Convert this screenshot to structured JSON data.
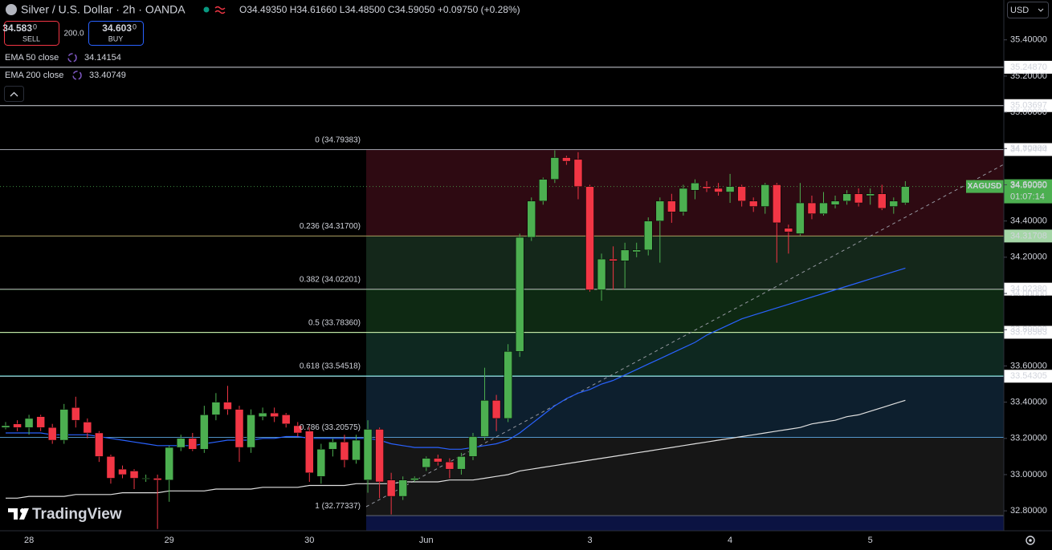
{
  "chart_data": {
    "type": "candlestick",
    "title": "Silver / U.S. Dollar · 2h · OANDA",
    "ohlc_text": "O34.49350 H34.61660 L34.48500 C34.59050 +0.09750 (+0.28%)",
    "sell": {
      "price": "34.583",
      "suffix": "0",
      "label": "SELL"
    },
    "spread": "200.0",
    "buy": {
      "price": "34.603",
      "suffix": "0",
      "label": "BUY"
    },
    "currency": "USD",
    "watermark": "TradingView",
    "up_color": "#4caf50",
    "down_color": "#f23645",
    "categories": [
      null,
      null,
      "28",
      null,
      null,
      null,
      null,
      null,
      null,
      null,
      null,
      null,
      null,
      null,
      "29",
      null,
      null,
      null,
      null,
      null,
      null,
      null,
      null,
      null,
      null,
      null,
      "30",
      null,
      null,
      null,
      null,
      null,
      null,
      null,
      null,
      null,
      "Jun",
      null,
      null,
      null,
      null,
      null,
      null,
      null,
      null,
      null,
      null,
      null,
      null,
      null,
      "3",
      null,
      null,
      null,
      null,
      null,
      null,
      null,
      null,
      null,
      null,
      null,
      "4",
      null,
      null,
      null,
      null,
      null,
      null,
      null,
      null,
      null,
      null,
      null,
      "5",
      null,
      null,
      null
    ],
    "open": [
      33.26,
      33.28,
      33.26,
      33.32,
      33.26,
      33.19,
      33.37,
      33.29,
      33.23,
      33.1,
      33.03,
      33.02,
      32.98,
      32.98,
      32.97,
      33.15,
      33.2,
      33.14,
      33.33,
      33.4,
      33.36,
      33.15,
      33.32,
      33.34,
      33.33,
      33.27,
      33.24,
      32.99,
      33.14,
      33.18,
      33.08,
      32.97,
      33.25,
      32.97,
      32.88,
      32.97,
      33.04,
      33.09,
      33.07,
      33.03,
      33.1,
      33.21,
      33.41,
      33.31,
      33.68,
      34.31,
      34.51,
      34.63,
      34.75,
      34.74,
      34.59,
      34.02,
      34.19,
      34.18,
      34.23,
      34.24,
      34.4,
      34.51,
      34.45,
      34.57,
      34.59,
      34.58,
      34.56,
      34.59,
      34.51,
      34.48,
      34.6,
      34.36,
      34.33,
      34.5,
      34.44,
      34.49,
      34.51,
      34.55,
      34.54,
      34.55,
      34.48,
      34.5
    ],
    "high": [
      33.29,
      33.3,
      33.33,
      33.33,
      33.28,
      33.39,
      33.43,
      33.31,
      33.24,
      33.11,
      33.05,
      33.03,
      33.0,
      33.0,
      33.16,
      33.22,
      33.23,
      33.38,
      33.45,
      33.49,
      33.38,
      33.36,
      33.37,
      33.37,
      33.34,
      33.29,
      33.26,
      33.17,
      33.2,
      33.22,
      33.22,
      33.3,
      33.26,
      33.01,
      32.99,
      32.99,
      33.1,
      33.11,
      33.09,
      33.12,
      33.23,
      33.59,
      33.44,
      33.72,
      34.33,
      34.53,
      34.64,
      34.79,
      34.76,
      34.78,
      34.6,
      34.22,
      34.26,
      34.28,
      34.28,
      34.42,
      34.53,
      34.55,
      34.6,
      34.63,
      34.62,
      34.61,
      34.66,
      34.6,
      34.53,
      34.61,
      34.61,
      34.38,
      34.61,
      34.54,
      34.56,
      34.54,
      34.57,
      34.58,
      34.58,
      34.6,
      34.53,
      34.62
    ],
    "low": [
      33.25,
      33.24,
      33.22,
      33.24,
      33.17,
      33.17,
      33.26,
      33.2,
      33.07,
      32.95,
      32.98,
      32.92,
      32.96,
      32.7,
      32.85,
      33.13,
      33.13,
      33.12,
      33.3,
      33.33,
      33.07,
      33.12,
      33.3,
      33.29,
      33.26,
      33.21,
      32.96,
      32.95,
      33.1,
      33.04,
      33.06,
      32.9,
      32.87,
      32.78,
      32.86,
      32.96,
      33.02,
      33.05,
      32.98,
      33.0,
      33.08,
      33.19,
      33.24,
      33.29,
      33.65,
      34.29,
      34.49,
      34.61,
      34.71,
      34.52,
      34.01,
      33.96,
      34.02,
      34.03,
      34.2,
      34.21,
      34.17,
      34.39,
      34.43,
      34.52,
      34.56,
      34.54,
      34.5,
      34.48,
      34.45,
      34.44,
      34.17,
      34.22,
      34.32,
      34.41,
      34.43,
      34.47,
      34.49,
      34.48,
      34.49,
      34.46,
      34.44,
      34.49
    ],
    "close": [
      33.27,
      33.26,
      33.31,
      33.26,
      33.19,
      33.36,
      33.3,
      33.23,
      33.1,
      32.98,
      33.0,
      32.98,
      32.98,
      32.97,
      33.15,
      33.2,
      33.14,
      33.33,
      33.4,
      33.36,
      33.15,
      33.33,
      33.34,
      33.32,
      33.28,
      33.23,
      33.01,
      33.14,
      33.18,
      33.08,
      33.19,
      33.25,
      32.96,
      32.88,
      32.97,
      32.98,
      33.09,
      33.07,
      33.03,
      33.1,
      33.21,
      33.41,
      33.31,
      33.68,
      34.31,
      34.51,
      34.63,
      34.75,
      34.73,
      34.59,
      34.02,
      34.19,
      34.18,
      34.24,
      34.24,
      34.4,
      34.51,
      34.45,
      34.58,
      34.61,
      34.58,
      34.56,
      34.59,
      34.51,
      34.48,
      34.6,
      34.39,
      34.34,
      34.5,
      34.44,
      34.5,
      34.51,
      34.55,
      34.5,
      34.55,
      34.47,
      34.51,
      34.59
    ],
    "indicators": [
      {
        "name": "EMA 50 close",
        "last": 34.14154,
        "color": "#2962ff",
        "legend_color": "#5b7cfa",
        "values": [
          33.23,
          33.23,
          33.23,
          33.23,
          33.22,
          33.22,
          33.22,
          33.22,
          33.21,
          33.2,
          33.19,
          33.18,
          33.17,
          33.16,
          33.16,
          33.16,
          33.16,
          33.17,
          33.18,
          33.19,
          33.19,
          33.19,
          33.2,
          33.2,
          33.21,
          33.21,
          33.2,
          33.2,
          33.2,
          33.2,
          33.2,
          33.2,
          33.19,
          33.17,
          33.16,
          33.15,
          33.15,
          33.15,
          33.14,
          33.14,
          33.15,
          33.16,
          33.17,
          33.19,
          33.23,
          33.28,
          33.33,
          33.38,
          33.42,
          33.45,
          33.47,
          33.5,
          33.52,
          33.55,
          33.58,
          33.61,
          33.64,
          33.67,
          33.7,
          33.73,
          33.77,
          33.8,
          33.83,
          33.86,
          33.88,
          33.9,
          33.92,
          33.94,
          33.96,
          33.98,
          34.0,
          34.02,
          34.04,
          34.06,
          34.08,
          34.1,
          34.12,
          34.14
        ]
      },
      {
        "name": "EMA 200 close",
        "last": 33.40749,
        "color": "#e0e0e0",
        "legend_color": "#ffffff",
        "values": [
          32.87,
          32.87,
          32.88,
          32.88,
          32.88,
          32.88,
          32.89,
          32.89,
          32.89,
          32.89,
          32.9,
          32.9,
          32.9,
          32.9,
          32.91,
          32.91,
          32.91,
          32.91,
          32.92,
          32.92,
          32.92,
          32.92,
          32.93,
          32.93,
          32.93,
          32.93,
          32.94,
          32.94,
          32.94,
          32.94,
          32.95,
          32.95,
          32.95,
          32.95,
          32.96,
          32.96,
          32.96,
          32.96,
          32.97,
          32.97,
          32.97,
          32.98,
          32.99,
          33.0,
          33.02,
          33.03,
          33.04,
          33.05,
          33.06,
          33.07,
          33.08,
          33.09,
          33.1,
          33.11,
          33.12,
          33.13,
          33.14,
          33.15,
          33.16,
          33.17,
          33.18,
          33.19,
          33.2,
          33.21,
          33.22,
          33.23,
          33.24,
          33.25,
          33.26,
          33.28,
          33.29,
          33.3,
          33.32,
          33.33,
          33.35,
          33.37,
          33.39,
          33.41
        ]
      }
    ],
    "fib": [
      {
        "label": "0 (34.79383)",
        "value": 34.79383,
        "color": "#787b86",
        "zone": "#2e0a12"
      },
      {
        "label": "0.236 (34.31700)",
        "value": 34.317,
        "color": "#f23645",
        "zone": "#14271a"
      },
      {
        "label": "0.382 (34.02201)",
        "value": 34.02201,
        "color": "#81c784",
        "zone": "#0e2913"
      },
      {
        "label": "0.5 (33.78360)",
        "value": 33.7836,
        "color": "#66bb6a",
        "zone": "#0e2820"
      },
      {
        "label": "0.618 (33.54518)",
        "value": 33.54518,
        "color": "#26a69a",
        "zone": "#0d1f2e"
      },
      {
        "label": "0.786 (33.20575)",
        "value": 33.20575,
        "color": "#64b5f6",
        "zone": "#161616"
      },
      {
        "label": "1 (32.77337)",
        "value": 32.77337,
        "color": "#787b86",
        "zone": "#0b1342"
      }
    ],
    "levels": [
      {
        "value": 35.2487,
        "label": "35.24870",
        "color": "#d1d4dc",
        "tag": "#ffffff"
      },
      {
        "value": 35.03697,
        "label": "35.03697",
        "color": "#d1d4dc",
        "tag": "#ffffff"
      },
      {
        "value": 34.79444,
        "label": "34.79444",
        "color": "#9598a1",
        "tag": "#ffffff"
      },
      {
        "value": 34.31708,
        "label": "34.31708",
        "color": "#8d9a5a",
        "tag": "#a5d6a7"
      },
      {
        "value": 34.0238,
        "label": "34.02380",
        "color": "#9e9e9e",
        "tag": "#ffffff"
      },
      {
        "value": 33.78563,
        "label": "33.78563",
        "color": "#c5e1a5",
        "tag": "#ffffff"
      },
      {
        "value": 33.54305,
        "label": "33.54305",
        "color": "#b2ebf2",
        "tag": "#ffffff"
      }
    ],
    "last_price": {
      "symbol": "XAGUSD",
      "value": 34.5905,
      "label": "34.59050",
      "countdown": "01:07:14",
      "color": "#4caf50"
    },
    "ylim": [
      32.69,
      35.62
    ],
    "yticks": [
      {
        "value": 32.8,
        "label": "32.80000"
      },
      {
        "value": 33.0,
        "label": "33.00000"
      },
      {
        "value": 33.2,
        "label": "33.20000"
      },
      {
        "value": 33.4,
        "label": "33.40000"
      },
      {
        "value": 33.6,
        "label": "33.60000"
      },
      {
        "value": 33.8,
        "label": "33.80000"
      },
      {
        "value": 34.0,
        "label": "34.00000"
      },
      {
        "value": 34.2,
        "label": "34.20000"
      },
      {
        "value": 34.4,
        "label": "34.40000"
      },
      {
        "value": 34.6,
        "label": "34.60000"
      },
      {
        "value": 34.8,
        "label": "34.80000"
      },
      {
        "value": 35.0,
        "label": "35.00000"
      },
      {
        "value": 35.2,
        "label": "35.20000"
      },
      {
        "value": 35.4,
        "label": "35.40000"
      }
    ]
  }
}
